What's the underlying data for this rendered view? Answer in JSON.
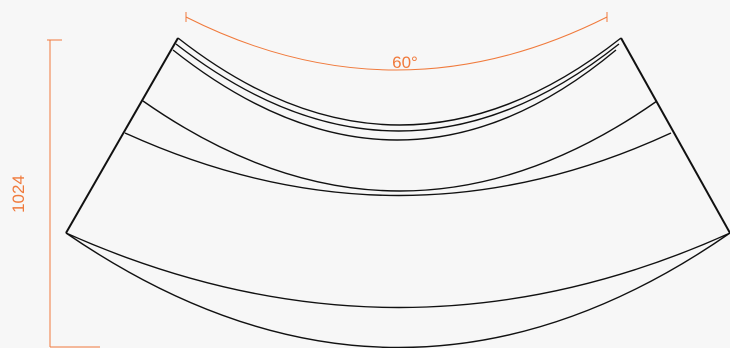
{
  "dimensions": {
    "angle_label": "60°",
    "height_label": "1024"
  },
  "colors": {
    "background": "#f7f7f7",
    "outline": "#111111",
    "dimension": "#f07a3c"
  }
}
